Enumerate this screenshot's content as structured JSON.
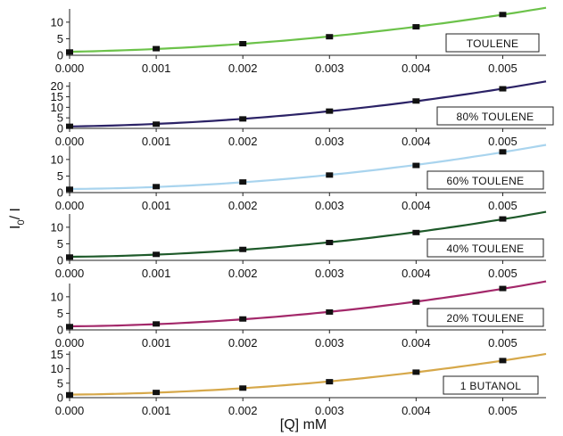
{
  "ylabel": {
    "main": "I",
    "sub": "0",
    "tail": "/ I"
  },
  "xlabel": "[Q] mM",
  "chart_data": [
    {
      "type": "line",
      "legend": "TOULENE",
      "color": "#6cc24a",
      "x": [
        0.0,
        0.001,
        0.002,
        0.003,
        0.004,
        0.005
      ],
      "y": [
        1.0,
        2.0,
        3.5,
        5.6,
        8.6,
        12.3
      ],
      "xlim": [
        0.0,
        0.0055
      ],
      "ylim": [
        0,
        14
      ],
      "xticks": [
        "0.000",
        "0.001",
        "0.002",
        "0.003",
        "0.004",
        "0.005"
      ],
      "yticks": [
        0,
        5,
        10
      ]
    },
    {
      "type": "line",
      "legend": "80% TOULENE",
      "color": "#2b2266",
      "x": [
        0.0,
        0.001,
        0.002,
        0.003,
        0.004,
        0.005
      ],
      "y": [
        1.0,
        2.0,
        4.5,
        8.2,
        13.0,
        18.8
      ],
      "xlim": [
        0.0,
        0.0055
      ],
      "ylim": [
        0,
        22
      ],
      "xticks": [
        "0.000",
        "0.001",
        "0.002",
        "0.003",
        "0.004",
        "0.005"
      ],
      "yticks": [
        0,
        5,
        10,
        15,
        20
      ]
    },
    {
      "type": "line",
      "legend": "60% TOULENE",
      "color": "#a9d4ee",
      "x": [
        0.0,
        0.001,
        0.002,
        0.003,
        0.004,
        0.005
      ],
      "y": [
        1.0,
        1.8,
        3.2,
        5.3,
        8.2,
        12.3
      ],
      "xlim": [
        0.0,
        0.0055
      ],
      "ylim": [
        0,
        14
      ],
      "xticks": [
        "0.000",
        "0.001",
        "0.002",
        "0.003",
        "0.004",
        "0.005"
      ],
      "yticks": [
        0,
        5,
        10
      ]
    },
    {
      "type": "line",
      "legend": "40% TOULENE",
      "color": "#1e5a2a",
      "x": [
        0.0,
        0.001,
        0.002,
        0.003,
        0.004,
        0.005
      ],
      "y": [
        1.0,
        1.8,
        3.3,
        5.4,
        8.4,
        12.5
      ],
      "xlim": [
        0.0,
        0.0055
      ],
      "ylim": [
        0,
        14
      ],
      "xticks": [
        "0.000",
        "0.001",
        "0.002",
        "0.003",
        "0.004",
        "0.005"
      ],
      "yticks": [
        0,
        5,
        10
      ]
    },
    {
      "type": "line",
      "legend": "20% TOULENE",
      "color": "#a3286a",
      "x": [
        0.0,
        0.001,
        0.002,
        0.003,
        0.004,
        0.005
      ],
      "y": [
        1.0,
        1.8,
        3.3,
        5.4,
        8.4,
        12.5
      ],
      "xlim": [
        0.0,
        0.0055
      ],
      "ylim": [
        0,
        14
      ],
      "xticks": [
        "0.000",
        "0.001",
        "0.002",
        "0.003",
        "0.004",
        "0.005"
      ],
      "yticks": [
        0,
        5,
        10
      ]
    },
    {
      "type": "line",
      "legend": "1 BUTANOL",
      "color": "#d6a84a",
      "x": [
        0.0,
        0.001,
        0.002,
        0.003,
        0.004,
        0.005
      ],
      "y": [
        1.0,
        1.8,
        3.3,
        5.5,
        8.8,
        12.8
      ],
      "xlim": [
        0.0,
        0.0055
      ],
      "ylim": [
        0,
        16
      ],
      "xticks": [
        "0.000",
        "0.001",
        "0.002",
        "0.003",
        "0.004",
        "0.005"
      ],
      "yticks": [
        0,
        5,
        10,
        15
      ]
    }
  ]
}
